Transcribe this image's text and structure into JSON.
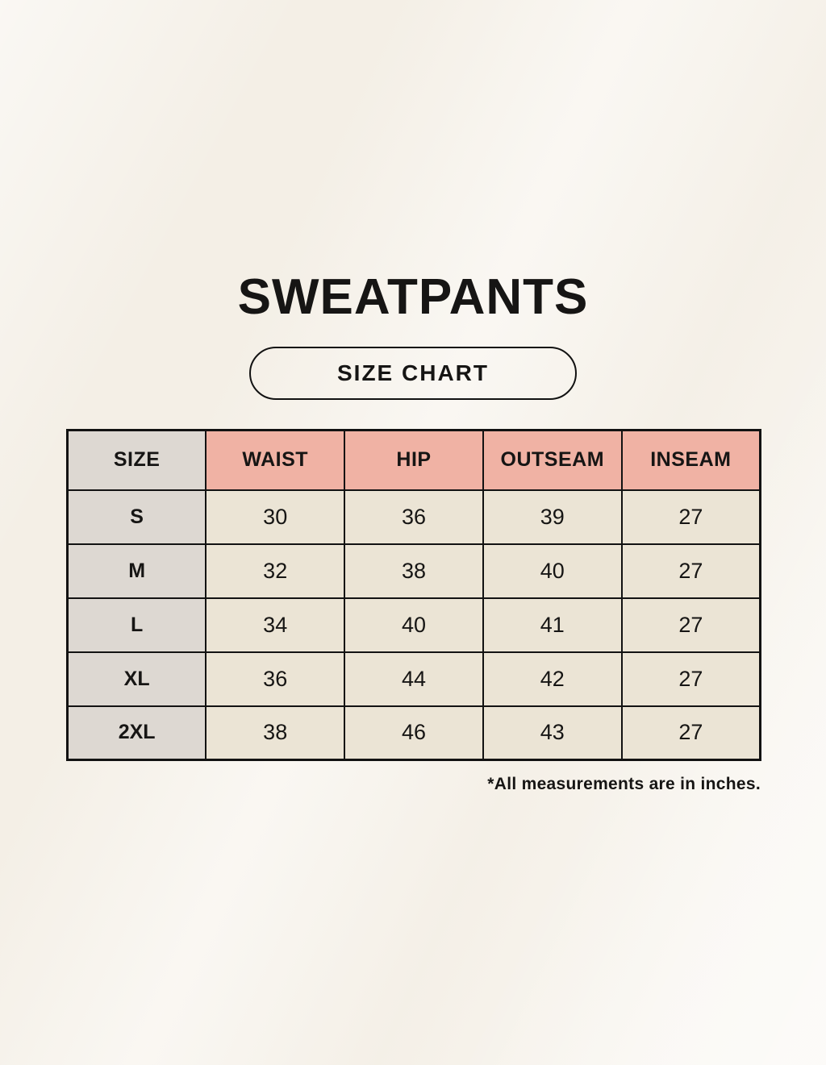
{
  "title": "SWEATPANTS",
  "badge_label": "SIZE CHART",
  "table": {
    "headers": [
      "SIZE",
      "WAIST",
      "HIP",
      "OUTSEAM",
      "INSEAM"
    ],
    "rows": [
      {
        "size": "S",
        "values": [
          "30",
          "36",
          "39",
          "27"
        ]
      },
      {
        "size": "M",
        "values": [
          "32",
          "38",
          "40",
          "27"
        ]
      },
      {
        "size": "L",
        "values": [
          "34",
          "40",
          "41",
          "27"
        ]
      },
      {
        "size": "XL",
        "values": [
          "36",
          "44",
          "42",
          "27"
        ]
      },
      {
        "size": "2XL",
        "values": [
          "38",
          "46",
          "43",
          "27"
        ]
      }
    ]
  },
  "footnote": "*All measurements are in inches.",
  "colors": {
    "background": "#f7f3ec",
    "header_pink": "#f0b2a4",
    "size_column_gray": "#ddd8d2",
    "data_cell_cream": "#ebe4d5",
    "border": "#121212",
    "text": "#161514"
  }
}
